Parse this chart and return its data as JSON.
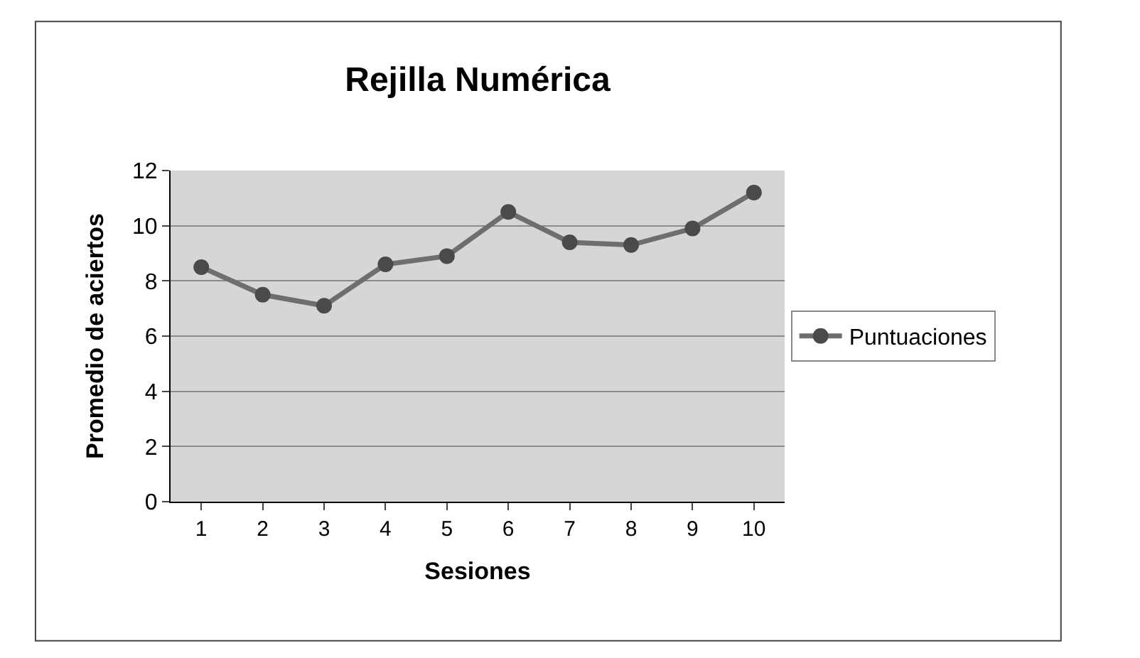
{
  "chart_data": {
    "type": "line",
    "title": "Rejilla Numérica",
    "xlabel": "Sesiones",
    "ylabel": "Promedio de aciertos",
    "categories": [
      "1",
      "2",
      "3",
      "4",
      "5",
      "6",
      "7",
      "8",
      "9",
      "10"
    ],
    "series": [
      {
        "name": "Puntuaciones",
        "color": "#6e6e6e",
        "values": [
          8.5,
          7.5,
          7.1,
          8.6,
          8.9,
          10.5,
          9.4,
          9.3,
          9.9,
          11.2
        ]
      }
    ],
    "ylim": [
      0,
      12
    ],
    "yticks": [
      0,
      2,
      4,
      6,
      8,
      10,
      12
    ],
    "grid": "y",
    "legend": "right",
    "marker": "circle",
    "line_style": "solid"
  }
}
